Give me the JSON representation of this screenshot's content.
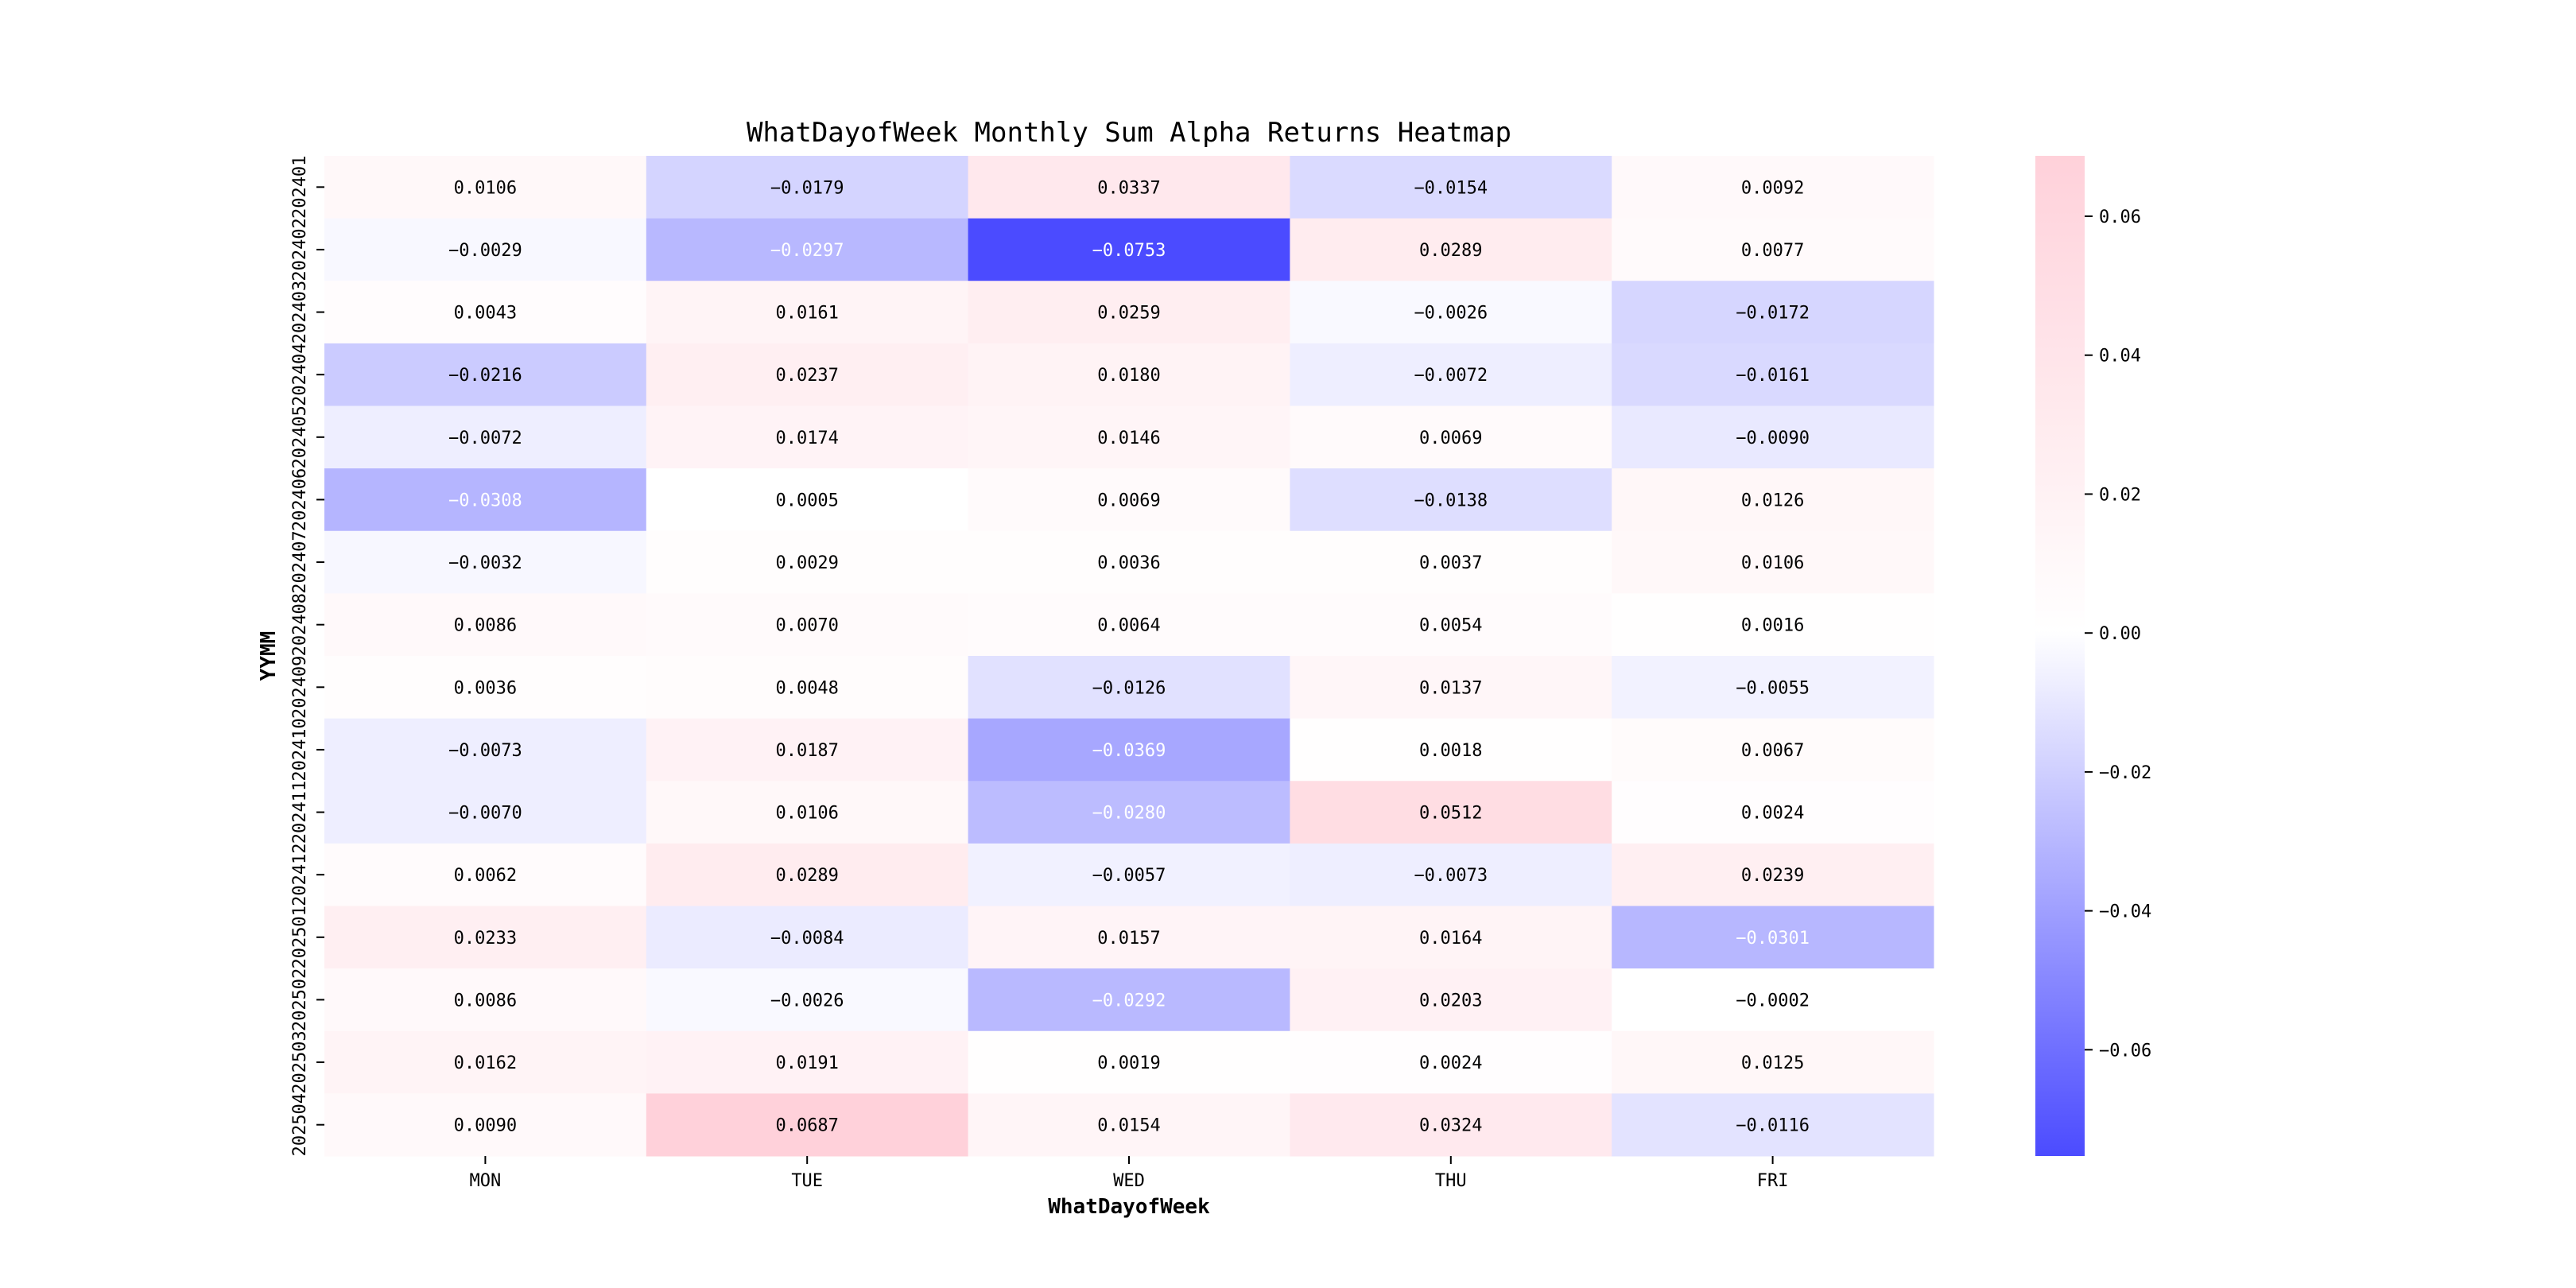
{
  "chart_data": {
    "type": "heatmap",
    "title": "WhatDayofWeek Monthly Sum Alpha Returns Heatmap",
    "xlabel": "WhatDayofWeek",
    "ylabel": "YYMM",
    "x_categories": [
      "MON",
      "TUE",
      "WED",
      "THU",
      "FRI"
    ],
    "y_categories": [
      "202401",
      "202402",
      "202403",
      "202404",
      "202405",
      "202406",
      "202407",
      "202408",
      "202409",
      "202410",
      "202411",
      "202412",
      "202501",
      "202502",
      "202503",
      "202504"
    ],
    "values": [
      [
        0.0106,
        -0.0179,
        0.0337,
        -0.0154,
        0.0092
      ],
      [
        -0.0029,
        -0.0297,
        -0.0753,
        0.0289,
        0.0077
      ],
      [
        0.0043,
        0.0161,
        0.0259,
        -0.0026,
        -0.0172
      ],
      [
        -0.0216,
        0.0237,
        0.018,
        -0.0072,
        -0.0161
      ],
      [
        -0.0072,
        0.0174,
        0.0146,
        0.0069,
        -0.009
      ],
      [
        -0.0308,
        0.0005,
        0.0069,
        -0.0138,
        0.0126
      ],
      [
        -0.0032,
        0.0029,
        0.0036,
        0.0037,
        0.0106
      ],
      [
        0.0086,
        0.007,
        0.0064,
        0.0054,
        0.0016
      ],
      [
        0.0036,
        0.0048,
        -0.0126,
        0.0137,
        -0.0055
      ],
      [
        -0.0073,
        0.0187,
        -0.0369,
        0.0018,
        0.0067
      ],
      [
        -0.007,
        0.0106,
        -0.028,
        0.0512,
        0.0024
      ],
      [
        0.0062,
        0.0289,
        -0.0057,
        -0.0073,
        0.0239
      ],
      [
        0.0233,
        -0.0084,
        0.0157,
        0.0164,
        -0.0301
      ],
      [
        0.0086,
        -0.0026,
        -0.0292,
        0.0203,
        -0.0002
      ],
      [
        0.0162,
        0.0191,
        0.0019,
        0.0024,
        0.0125
      ],
      [
        0.009,
        0.0687,
        0.0154,
        0.0324,
        -0.0116
      ]
    ],
    "value_format": "0.0000",
    "colorbar": {
      "vmin": -0.0753,
      "vmax": 0.0687,
      "center": 0.0,
      "ticks": [
        0.06,
        0.04,
        0.02,
        0.0,
        -0.02,
        -0.04,
        -0.06
      ],
      "tick_labels": [
        "0.06",
        "0.04",
        "0.02",
        "0.00",
        "−0.02",
        "−0.04",
        "−0.06"
      ],
      "negative_color": "#4b4bff",
      "neutral_color": "#ffffff",
      "positive_color": "#ffd1da"
    },
    "legend": "colorbar-right",
    "grid": false
  }
}
